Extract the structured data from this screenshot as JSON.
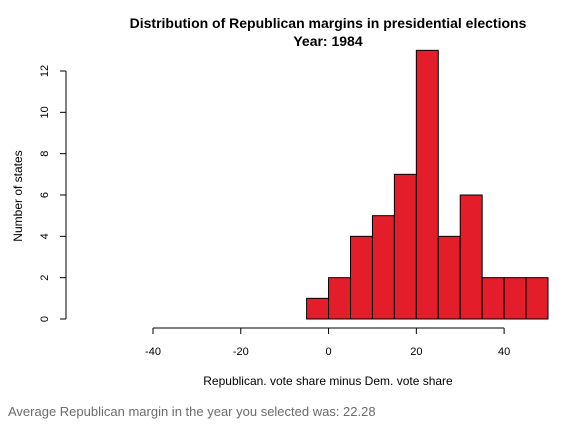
{
  "chart_data": {
    "type": "bar",
    "title": "Distribution of Republican margins in presidential elections",
    "subtitle": "Year:  1984",
    "xlabel": "Republican. vote share minus Dem. vote share",
    "ylabel": "Number of states",
    "xlim": [
      -40,
      50
    ],
    "ylim": [
      0,
      12
    ],
    "x_ticks": [
      -40,
      -20,
      0,
      20,
      40
    ],
    "y_ticks": [
      0,
      2,
      4,
      6,
      8,
      10,
      12
    ],
    "bin_edges": [
      -5,
      0,
      5,
      10,
      15,
      20,
      25,
      30,
      35,
      40,
      45,
      50
    ],
    "values": [
      1,
      2,
      4,
      5,
      7,
      13,
      4,
      6,
      2,
      2,
      2
    ],
    "bar_color": "#E31E2A",
    "grid": false
  },
  "caption": "Average Republican margin in the year you selected was: 22.28"
}
